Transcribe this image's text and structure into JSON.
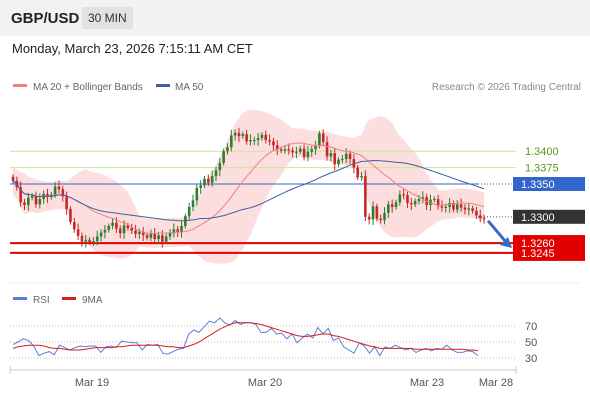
{
  "header": {
    "pair": "GBP/USD",
    "interval": "30 MIN"
  },
  "datetime": "Monday, March 23, 2026 7:15:11 AM CET",
  "legend": {
    "ma20": "MA 20 + Bollinger Bands",
    "ma50": "MA 50",
    "rsi": "RSI",
    "rsi_ma": "9MA"
  },
  "copyright": "Research © 2026 Trading Central",
  "colors": {
    "up_candle": "#2e7d32",
    "down_candle": "#c62828",
    "bollinger_fill": "#fbd3d3",
    "ma20": "#f08080",
    "ma50": "#3f5fa0",
    "support_resistance": "#c8e6a0",
    "key_level": "#3366cc",
    "stop_level": "#e00000",
    "rsi": "#5b7fd6",
    "rsi_ma": "#d22020",
    "label_dark": "#333333",
    "arrow": "#3a6bc4"
  },
  "chart_data": [
    {
      "type": "candlestick",
      "title": "GBP/USD",
      "x_ticks": [
        "Mar 19",
        "Mar 20",
        "Mar 23",
        "Mar 28"
      ],
      "ylim": [
        1.3222,
        1.3478
      ],
      "grid": false,
      "legend_position": "top-left",
      "levels": [
        {
          "label": "1.3400",
          "value": 1.34,
          "style": "resistance"
        },
        {
          "label": "1.3375",
          "value": 1.3375,
          "style": "resistance"
        },
        {
          "label": "1.3350",
          "value": 1.335,
          "style": "pivot"
        },
        {
          "label": "1.3300",
          "value": 1.33,
          "style": "last-price"
        },
        {
          "label": "1.3260",
          "value": 1.326,
          "style": "target"
        },
        {
          "label": "1.3245",
          "value": 1.3245,
          "style": "target"
        }
      ],
      "last_price": 1.33,
      "forecast_direction": "down",
      "close_series": [
        1.3355,
        1.3345,
        1.3322,
        1.3318,
        1.3329,
        1.3332,
        1.3319,
        1.3327,
        1.3335,
        1.333,
        1.3334,
        1.3346,
        1.3342,
        1.3331,
        1.3312,
        1.3292,
        1.3281,
        1.3271,
        1.3262,
        1.3265,
        1.3261,
        1.3263,
        1.327,
        1.3276,
        1.328,
        1.3286,
        1.3291,
        1.3282,
        1.3275,
        1.3287,
        1.3283,
        1.3279,
        1.3274,
        1.3277,
        1.3272,
        1.3268,
        1.3274,
        1.3266,
        1.3272,
        1.3262,
        1.327,
        1.3275,
        1.3281,
        1.3277,
        1.3286,
        1.3301,
        1.3315,
        1.3325,
        1.3344,
        1.3348,
        1.3358,
        1.3352,
        1.3362,
        1.3371,
        1.3382,
        1.34,
        1.3406,
        1.3424,
        1.3428,
        1.3423,
        1.3426,
        1.3415,
        1.3417,
        1.3417,
        1.342,
        1.3425,
        1.3417,
        1.3415,
        1.3409,
        1.3403,
        1.3401,
        1.3403,
        1.3401,
        1.3398,
        1.3399,
        1.3404,
        1.3391,
        1.3399,
        1.3403,
        1.3408,
        1.3427,
        1.3414,
        1.3392,
        1.3397,
        1.338,
        1.3387,
        1.3388,
        1.3396,
        1.3388,
        1.3375,
        1.336,
        1.3362,
        1.33,
        1.3296,
        1.3316,
        1.3297,
        1.3295,
        1.3306,
        1.3319,
        1.3315,
        1.3322,
        1.3334,
        1.3333,
        1.3321,
        1.3319,
        1.3324,
        1.3327,
        1.333,
        1.3318,
        1.3326,
        1.3327,
        1.3316,
        1.3314,
        1.3315,
        1.3321,
        1.3311,
        1.3319,
        1.3314,
        1.3311,
        1.3313,
        1.3309,
        1.3302,
        1.3298,
        1.3297
      ]
    },
    {
      "type": "line",
      "title": "RSI",
      "series": [
        {
          "name": "RSI",
          "values": [
            47,
            50,
            54,
            52,
            45,
            33,
            36,
            38,
            34,
            46,
            43,
            40,
            43,
            45,
            44,
            45,
            45,
            37,
            44,
            45,
            43,
            51,
            50,
            49,
            49,
            40,
            47,
            46,
            47,
            36,
            35,
            38,
            41,
            42,
            60,
            65,
            62,
            69,
            76,
            74,
            80,
            74,
            71,
            77,
            72,
            74,
            74,
            72,
            62,
            62,
            67,
            60,
            61,
            54,
            60,
            49,
            55,
            60,
            55,
            68,
            60,
            67,
            52,
            55,
            44,
            40,
            36,
            49,
            45,
            36,
            44,
            33,
            44,
            42,
            46,
            43,
            40,
            42,
            37,
            40,
            42,
            39,
            42,
            41,
            46,
            40,
            37,
            37,
            39,
            38,
            33
          ]
        },
        {
          "name": "9MA",
          "values": [
            42,
            44,
            45,
            46,
            46,
            46,
            45,
            43,
            42,
            42,
            41,
            40,
            40,
            40,
            41,
            42,
            43,
            43,
            43,
            43,
            44,
            44,
            45,
            46,
            46,
            46,
            46,
            46,
            46,
            45,
            44,
            44,
            43,
            43,
            45,
            47,
            50,
            54,
            58,
            62,
            66,
            69,
            72,
            74,
            74,
            74,
            74,
            73,
            72,
            70,
            68,
            66,
            64,
            62,
            60,
            58,
            57,
            57,
            58,
            59,
            60,
            60,
            58,
            57,
            55,
            53,
            51,
            49,
            47,
            45,
            44,
            42,
            42,
            42,
            42,
            42,
            42,
            42,
            41,
            41,
            41,
            41,
            41,
            41,
            41,
            41,
            41,
            41,
            40,
            40,
            39
          ]
        }
      ],
      "ylim": [
        20,
        85
      ],
      "y_ticks": [
        "70",
        "50",
        "30"
      ],
      "reference_lines": [
        70,
        50,
        30
      ]
    }
  ]
}
